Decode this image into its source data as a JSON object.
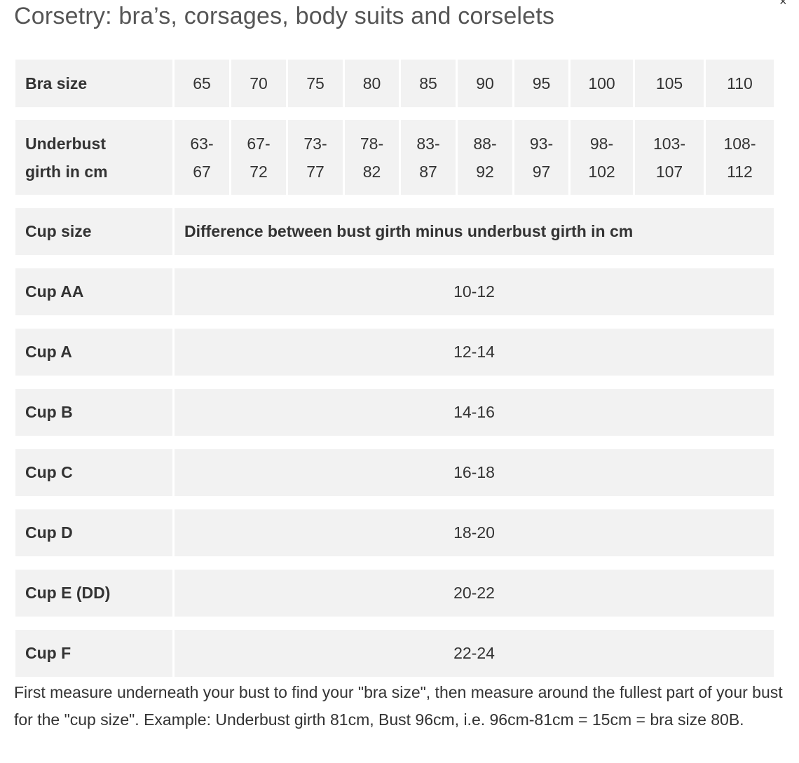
{
  "title": "Corsetry: bra’s, corsages, body suits and corselets",
  "close_icon": "×",
  "size_row": {
    "label": "Bra size",
    "values": [
      "65",
      "70",
      "75",
      "80",
      "85",
      "90",
      "95",
      "100",
      "105",
      "110"
    ]
  },
  "girth_row": {
    "label_line1": "Underbust",
    "label_line2": "girth in cm",
    "values": [
      {
        "top": "63-",
        "bottom": "67"
      },
      {
        "top": "67-",
        "bottom": "72"
      },
      {
        "top": "73-",
        "bottom": "77"
      },
      {
        "top": "78-",
        "bottom": "82"
      },
      {
        "top": "83-",
        "bottom": "87"
      },
      {
        "top": "88-",
        "bottom": "92"
      },
      {
        "top": "93-",
        "bottom": "97"
      },
      {
        "top": "98-",
        "bottom": "102"
      },
      {
        "top": "103-",
        "bottom": "107"
      },
      {
        "top": "108-",
        "bottom": "112"
      }
    ]
  },
  "cup_header": {
    "label": "Cup size",
    "description": "Difference between bust girth minus underbust girth in cm"
  },
  "cups": [
    {
      "label": "Cup AA",
      "range": "10-12"
    },
    {
      "label": "Cup A",
      "range": "12-14"
    },
    {
      "label": "Cup B",
      "range": "14-16"
    },
    {
      "label": "Cup C",
      "range": "16-18"
    },
    {
      "label": "Cup D",
      "range": "18-20"
    },
    {
      "label": "Cup E (DD)",
      "range": "20-22"
    },
    {
      "label": "Cup F",
      "range": "22-24"
    }
  ],
  "footnote": "First measure underneath your bust to find your \"bra size\", then measure around the fullest part of your bust for the \"cup size\". Example: Underbust girth 81cm, Bust 96cm, i.e. 96cm-81cm = 15cm = bra size 80B."
}
